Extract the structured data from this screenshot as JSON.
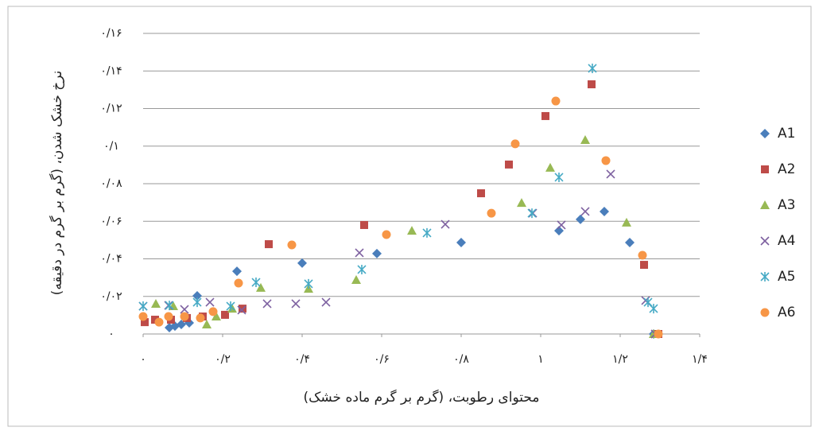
{
  "chart_data": {
    "type": "scatter",
    "xlabel": "محتوای رطوبت، (گرم بر گرم ماده خشک)",
    "ylabel": "نرخ خشک شدن، (گرم بر گرم در دقیقه)",
    "xlim": [
      0,
      1.4
    ],
    "xticks": [
      {
        "value": 0,
        "label": "۰"
      },
      {
        "value": 0.2,
        "label": "۰/۲"
      },
      {
        "value": 0.4,
        "label": "۰/۴"
      },
      {
        "value": 0.6,
        "label": "۰/۶"
      },
      {
        "value": 0.8,
        "label": "۰/۸"
      },
      {
        "value": 1,
        "label": "۱"
      },
      {
        "value": 1.2,
        "label": "۱/۲"
      },
      {
        "value": 1.4,
        "label": "۱/۴"
      }
    ],
    "ylim": [
      0,
      0.16
    ],
    "yticks": [
      {
        "value": 0,
        "label": "۰"
      },
      {
        "value": 0.02,
        "label": "۰/۰۲"
      },
      {
        "value": 0.04,
        "label": "۰/۰۴"
      },
      {
        "value": 0.06,
        "label": "۰/۰۶"
      },
      {
        "value": 0.08,
        "label": "۰/۰۸"
      },
      {
        "value": 0.1,
        "label": "۰/۱"
      },
      {
        "value": 0.12,
        "label": "۰/۱۲"
      },
      {
        "value": 0.14,
        "label": "۰/۱۴"
      },
      {
        "value": 0.16,
        "label": "۰/۱۶"
      }
    ],
    "grid": true,
    "legend": "right",
    "series": [
      {
        "name": "A1",
        "color": "#4a7ebb",
        "marker": "diamond",
        "x": [
          0.066,
          0.08,
          0.096,
          0.116,
          0.136,
          0.236,
          0.4,
          0.588,
          0.8,
          1.046,
          1.1,
          1.16,
          1.224,
          1.284
        ],
        "values": [
          0.0034,
          0.0042,
          0.0051,
          0.0059,
          0.0203,
          0.0334,
          0.0377,
          0.0428,
          0.0487,
          0.055,
          0.061,
          0.0652,
          0.0487,
          0
        ]
      },
      {
        "name": "A2",
        "color": "#be4b48",
        "marker": "square",
        "x": [
          0.004,
          0.03,
          0.07,
          0.11,
          0.15,
          0.206,
          0.25,
          0.316,
          0.556,
          0.85,
          0.92,
          1.012,
          1.128,
          1.26,
          1.296
        ],
        "values": [
          0.0063,
          0.0076,
          0.0076,
          0.0085,
          0.0093,
          0.0102,
          0.0135,
          0.0478,
          0.058,
          0.0749,
          0.0902,
          0.116,
          0.1329,
          0.0368,
          0
        ]
      },
      {
        "name": "A3",
        "color": "#98b954",
        "marker": "triangle",
        "x": [
          0.032,
          0.076,
          0.16,
          0.184,
          0.224,
          0.296,
          0.416,
          0.536,
          0.676,
          0.952,
          1.024,
          1.112,
          1.216,
          1.284
        ],
        "values": [
          0.0161,
          0.0148,
          0.0051,
          0.0093,
          0.0135,
          0.0246,
          0.0241,
          0.0288,
          0.055,
          0.0698,
          0.0885,
          0.1033,
          0.0593,
          0
        ]
      },
      {
        "name": "A4",
        "color": "#7d60a0",
        "marker": "x",
        "x": [
          0,
          0.064,
          0.104,
          0.168,
          0.248,
          0.312,
          0.384,
          0.46,
          0.544,
          0.76,
          0.98,
          1.052,
          1.112,
          1.176,
          1.264,
          1.288
        ],
        "values": [
          0.0148,
          0.0152,
          0.0131,
          0.0169,
          0.0127,
          0.0161,
          0.0161,
          0.0169,
          0.0432,
          0.0584,
          0.0643,
          0.058,
          0.0652,
          0.0851,
          0.0178,
          0
        ]
      },
      {
        "name": "A5",
        "color": "#46aac5",
        "marker": "star",
        "x": [
          0,
          0.066,
          0.136,
          0.22,
          0.284,
          0.416,
          0.55,
          0.714,
          0.978,
          1.046,
          1.13,
          1.27,
          1.284
        ],
        "values": [
          0.0148,
          0.0152,
          0.0169,
          0.0148,
          0.0275,
          0.0267,
          0.0343,
          0.0538,
          0.0643,
          0.0834,
          0.1414,
          0.0169,
          0.0135
        ]
      },
      {
        "name": "A6",
        "color": "#f79646",
        "marker": "circle",
        "x": [
          0,
          0.04,
          0.064,
          0.104,
          0.144,
          0.176,
          0.24,
          0.374,
          0.612,
          0.876,
          0.936,
          1.038,
          1.164,
          1.256,
          1.296
        ],
        "values": [
          0.0093,
          0.0063,
          0.0093,
          0.0093,
          0.0085,
          0.0119,
          0.0271,
          0.0474,
          0.0529,
          0.0643,
          0.1012,
          0.124,
          0.0923,
          0.0419,
          0
        ]
      }
    ]
  }
}
